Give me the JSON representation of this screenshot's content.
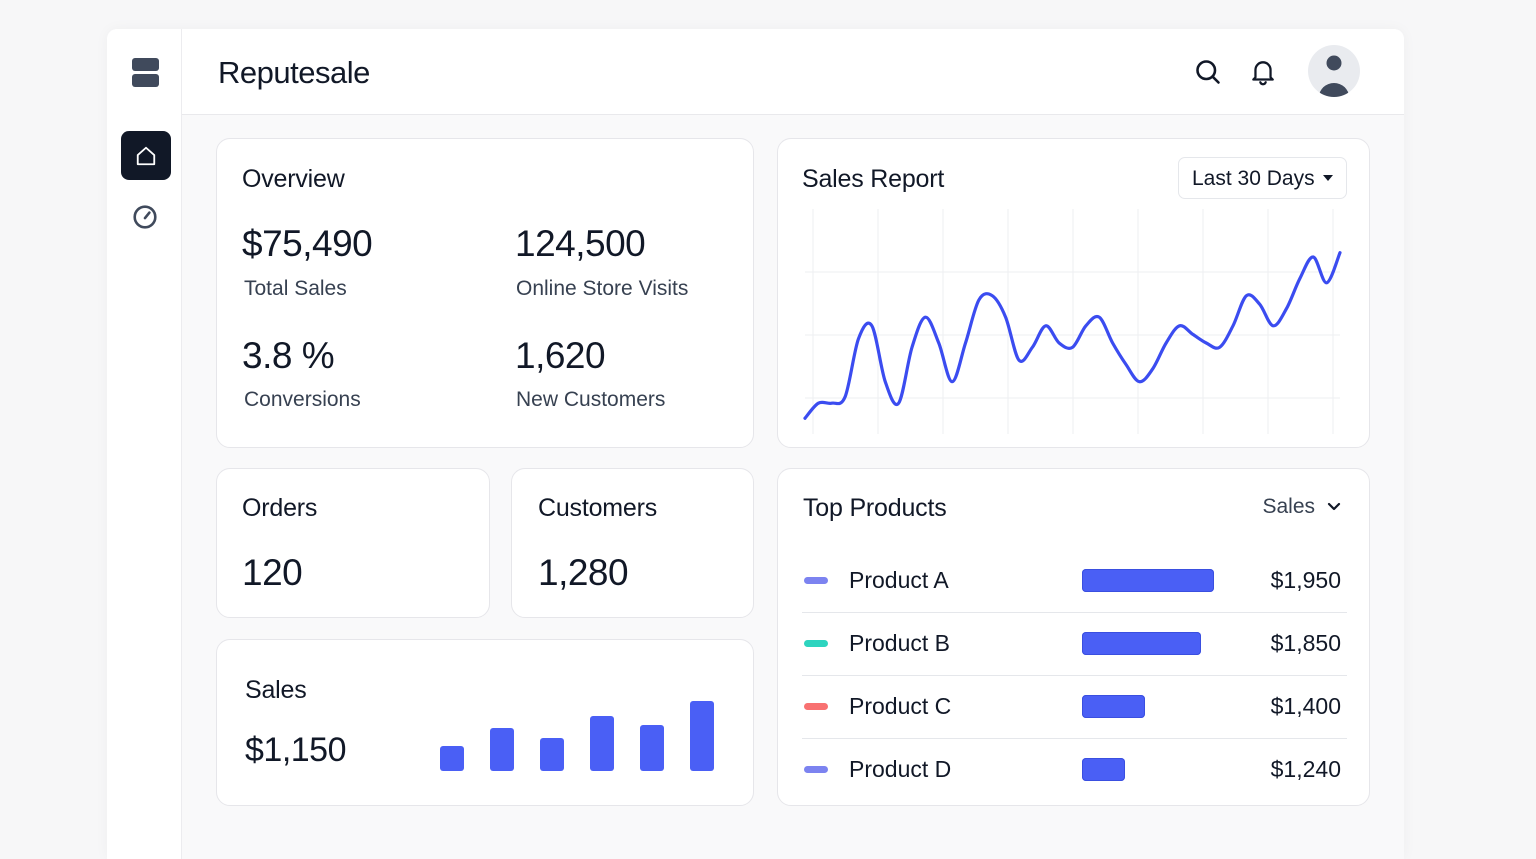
{
  "app": {
    "title": "Reputesale"
  },
  "icons": {
    "logo": "logo-icon",
    "home": "home-icon",
    "gauge": "gauge-icon",
    "search": "search-icon",
    "bell": "bell-icon",
    "avatar": "user-avatar-icon"
  },
  "overview": {
    "title": "Overview",
    "metrics": [
      {
        "value": "$75,490",
        "label": "Total Sales"
      },
      {
        "value": "124,500",
        "label": "Online Store Visits"
      },
      {
        "value": "3.8 %",
        "label": "Conversions"
      },
      {
        "value": "1,620",
        "label": "New Customers"
      }
    ]
  },
  "sales_report": {
    "title": "Sales Report",
    "range": "Last 30 Days"
  },
  "orders": {
    "title": "Orders",
    "value": "120"
  },
  "customers": {
    "title": "Customers",
    "value": "1,280"
  },
  "sales": {
    "title": "Sales",
    "value": "$1,150"
  },
  "top_products": {
    "title": "Top Products",
    "sort_by": "Sales",
    "items": [
      {
        "name": "Product A",
        "value": "$1,950",
        "amount": 1950,
        "color": "#7c83f0"
      },
      {
        "name": "Product B",
        "value": "$1,850",
        "amount": 1850,
        "color": "#2dd4bf"
      },
      {
        "name": "Product C",
        "value": "$1,400",
        "amount": 1400,
        "color": "#f87171"
      },
      {
        "name": "Product D",
        "value": "$1,240",
        "amount": 1240,
        "color": "#7c83f0"
      }
    ]
  },
  "colors": {
    "accent": "#4a5ff5",
    "line": "#3b4cf0",
    "dark": "#111827"
  },
  "chart_data": [
    {
      "type": "line",
      "title": "Sales Report",
      "x": [
        0,
        1,
        2,
        3,
        4,
        5,
        6,
        7,
        8,
        9,
        10,
        11,
        12,
        13,
        14,
        15,
        16,
        17,
        18,
        19,
        20,
        21,
        22,
        23,
        24,
        25,
        26,
        27,
        28,
        29,
        30,
        31,
        32,
        33,
        34,
        35,
        36,
        37,
        38,
        39,
        40
      ],
      "values": [
        5,
        12,
        12,
        15,
        42,
        48,
        22,
        12,
        38,
        52,
        40,
        22,
        40,
        60,
        62,
        52,
        32,
        38,
        48,
        40,
        38,
        48,
        52,
        40,
        30,
        22,
        28,
        40,
        48,
        44,
        40,
        38,
        48,
        62,
        58,
        48,
        56,
        70,
        80,
        68,
        82
      ],
      "xlabel": "",
      "ylabel": "",
      "ylim": [
        0,
        100
      ],
      "grid": true
    },
    {
      "type": "bar",
      "title": "Sales",
      "categories": [
        "1",
        "2",
        "3",
        "4",
        "5",
        "6"
      ],
      "values": [
        25,
        43,
        33,
        55,
        46,
        70
      ],
      "ylim": [
        0,
        70
      ]
    }
  ]
}
